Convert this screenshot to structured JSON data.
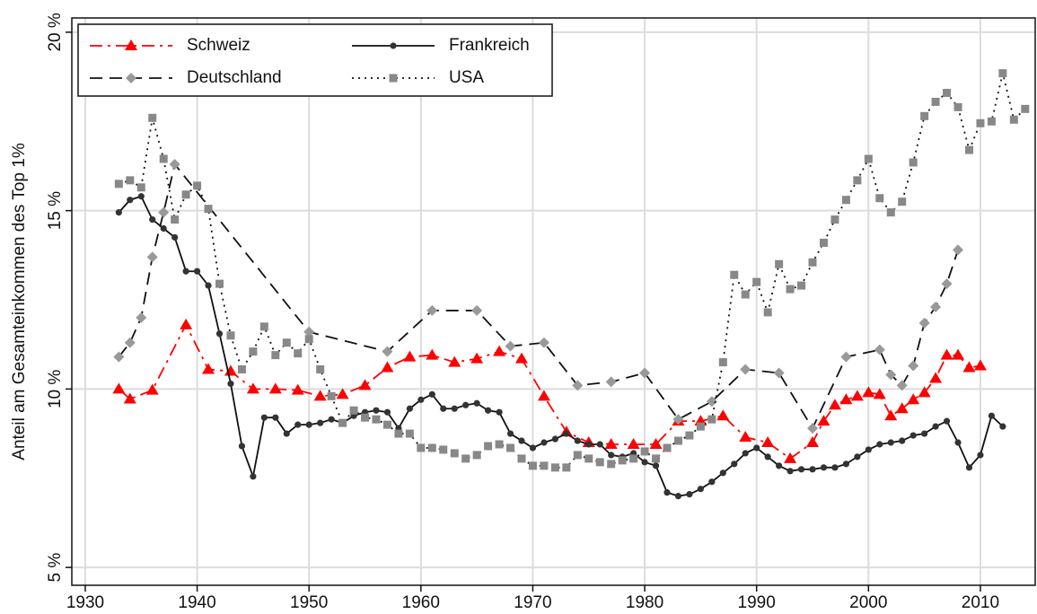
{
  "chart_data": {
    "type": "line",
    "ylabel": "Anteil am Gesamteinkommen des Top 1%",
    "xlim": [
      1928.8,
      2014.9
    ],
    "ylim": [
      4.5,
      20.4
    ],
    "xticks": [
      1930,
      1940,
      1950,
      1960,
      1970,
      1980,
      1990,
      2000,
      2010
    ],
    "yticks": [
      {
        "value": 5,
        "label": "5 %"
      },
      {
        "value": 10,
        "label": "10 %"
      },
      {
        "value": 15,
        "label": "15 %"
      },
      {
        "value": 20,
        "label": "20 %"
      }
    ],
    "grid": true,
    "legend": "upper left",
    "series": [
      {
        "name": "Schweiz",
        "color": "#ff0000",
        "line_color": "#ff0000",
        "dash": "dashdot",
        "marker": "triangle",
        "x": [
          1933,
          1934,
          1936,
          1939,
          1941,
          1943,
          1945,
          1947,
          1949,
          1951,
          1953,
          1955,
          1957,
          1959,
          1961,
          1963,
          1965,
          1967,
          1969,
          1971,
          1973,
          1975,
          1977,
          1979,
          1981,
          1983,
          1985,
          1987,
          1989,
          1991,
          1993,
          1995,
          1996,
          1997,
          1998,
          1999,
          2000,
          2001,
          2002,
          2003,
          2004,
          2005,
          2006,
          2007,
          2008,
          2009,
          2010
        ],
        "values": [
          10.0,
          9.72,
          9.97,
          11.8,
          10.55,
          10.5,
          10.0,
          10.0,
          9.97,
          9.8,
          9.85,
          10.1,
          10.6,
          10.9,
          10.95,
          10.75,
          10.85,
          11.05,
          10.85,
          9.8,
          8.8,
          8.5,
          8.45,
          8.45,
          8.45,
          9.1,
          9.1,
          9.25,
          8.65,
          8.5,
          8.05,
          8.5,
          9.1,
          9.55,
          9.7,
          9.8,
          9.9,
          9.85,
          9.25,
          9.45,
          9.7,
          9.9,
          10.3,
          10.95,
          10.95,
          10.6,
          10.65
        ]
      },
      {
        "name": "Frankreich",
        "color": "#333333",
        "line_color": "#111111",
        "dash": "solid",
        "marker": "circle",
        "x": [
          1933,
          1934,
          1935,
          1936,
          1937,
          1938,
          1939,
          1940,
          1941,
          1942,
          1943,
          1944,
          1945,
          1946,
          1947,
          1948,
          1949,
          1950,
          1951,
          1952,
          1953,
          1954,
          1955,
          1956,
          1957,
          1958,
          1959,
          1960,
          1961,
          1962,
          1963,
          1964,
          1965,
          1966,
          1967,
          1968,
          1969,
          1970,
          1971,
          1972,
          1973,
          1974,
          1975,
          1976,
          1977,
          1978,
          1979,
          1980,
          1981,
          1982,
          1983,
          1984,
          1985,
          1986,
          1987,
          1988,
          1989,
          1990,
          1991,
          1992,
          1993,
          1994,
          1995,
          1996,
          1997,
          1998,
          1999,
          2000,
          2001,
          2002,
          2003,
          2004,
          2005,
          2006,
          2007,
          2008,
          2009,
          2010,
          2011,
          2012
        ],
        "values": [
          14.95,
          15.3,
          15.4,
          14.75,
          14.5,
          14.25,
          13.3,
          13.3,
          12.9,
          11.55,
          10.15,
          8.4,
          7.55,
          9.2,
          9.2,
          8.75,
          9.0,
          9.0,
          9.05,
          9.15,
          9.05,
          9.25,
          9.35,
          9.4,
          9.35,
          8.9,
          9.45,
          9.7,
          9.85,
          9.45,
          9.45,
          9.55,
          9.6,
          9.4,
          9.35,
          8.75,
          8.55,
          8.35,
          8.5,
          8.6,
          8.75,
          8.55,
          8.45,
          8.45,
          8.15,
          8.1,
          8.2,
          7.95,
          7.85,
          7.1,
          7.0,
          7.05,
          7.2,
          7.4,
          7.65,
          7.9,
          8.2,
          8.35,
          8.1,
          7.85,
          7.7,
          7.75,
          7.75,
          7.8,
          7.8,
          7.9,
          8.1,
          8.3,
          8.45,
          8.5,
          8.55,
          8.7,
          8.75,
          8.95,
          9.1,
          8.5,
          7.8,
          8.15,
          9.25,
          8.95
        ]
      },
      {
        "name": "Deutschland",
        "color": "#999999",
        "line_color": "#111111",
        "dash": "dash",
        "marker": "diamond",
        "x": [
          1933,
          1934,
          1935,
          1936,
          1937,
          1938,
          1950,
          1957,
          1961,
          1965,
          1968,
          1971,
          1974,
          1977,
          1980,
          1983,
          1986,
          1989,
          1992,
          1995,
          1998,
          2001,
          2002,
          2003,
          2004,
          2005,
          2006,
          2007,
          2008
        ],
        "values": [
          10.9,
          11.3,
          12.0,
          13.7,
          14.95,
          16.3,
          11.6,
          11.05,
          12.2,
          12.2,
          11.2,
          11.3,
          10.1,
          10.2,
          10.45,
          9.15,
          9.65,
          10.55,
          10.45,
          8.9,
          10.9,
          11.1,
          10.4,
          10.1,
          10.65,
          11.85,
          12.3,
          12.95,
          13.9
        ]
      },
      {
        "name": "USA",
        "color": "#888888",
        "line_color": "#111111",
        "dash": "dot",
        "marker": "square",
        "x": [
          1933,
          1934,
          1935,
          1936,
          1937,
          1938,
          1939,
          1940,
          1941,
          1942,
          1943,
          1944,
          1945,
          1946,
          1947,
          1948,
          1949,
          1950,
          1951,
          1952,
          1953,
          1954,
          1955,
          1956,
          1957,
          1958,
          1959,
          1960,
          1961,
          1962,
          1963,
          1964,
          1965,
          1966,
          1967,
          1968,
          1969,
          1970,
          1971,
          1972,
          1973,
          1974,
          1975,
          1976,
          1977,
          1978,
          1979,
          1980,
          1981,
          1982,
          1983,
          1984,
          1985,
          1986,
          1987,
          1988,
          1989,
          1990,
          1991,
          1992,
          1993,
          1994,
          1995,
          1996,
          1997,
          1998,
          1999,
          2000,
          2001,
          2002,
          2003,
          2004,
          2005,
          2006,
          2007,
          2008,
          2009,
          2010,
          2011,
          2012,
          2013,
          2014
        ],
        "values": [
          15.75,
          15.85,
          15.65,
          17.6,
          16.45,
          14.75,
          15.45,
          15.7,
          15.05,
          12.95,
          11.5,
          10.55,
          11.05,
          11.75,
          10.95,
          11.3,
          11.0,
          11.4,
          10.55,
          9.8,
          9.05,
          9.4,
          9.2,
          9.15,
          9.0,
          8.75,
          8.75,
          8.35,
          8.35,
          8.3,
          8.2,
          8.05,
          8.15,
          8.4,
          8.45,
          8.35,
          8.05,
          7.85,
          7.85,
          7.8,
          7.8,
          8.15,
          8.05,
          7.95,
          7.9,
          8.0,
          8.05,
          8.25,
          8.05,
          8.35,
          8.55,
          8.7,
          8.95,
          9.15,
          10.75,
          13.2,
          12.65,
          13.0,
          12.15,
          13.5,
          12.8,
          12.9,
          13.55,
          14.1,
          14.75,
          15.3,
          15.85,
          16.45,
          15.35,
          14.95,
          15.25,
          16.35,
          17.65,
          18.05,
          18.3,
          17.9,
          16.7,
          17.45,
          17.5,
          18.85,
          17.55,
          17.85
        ]
      }
    ]
  }
}
